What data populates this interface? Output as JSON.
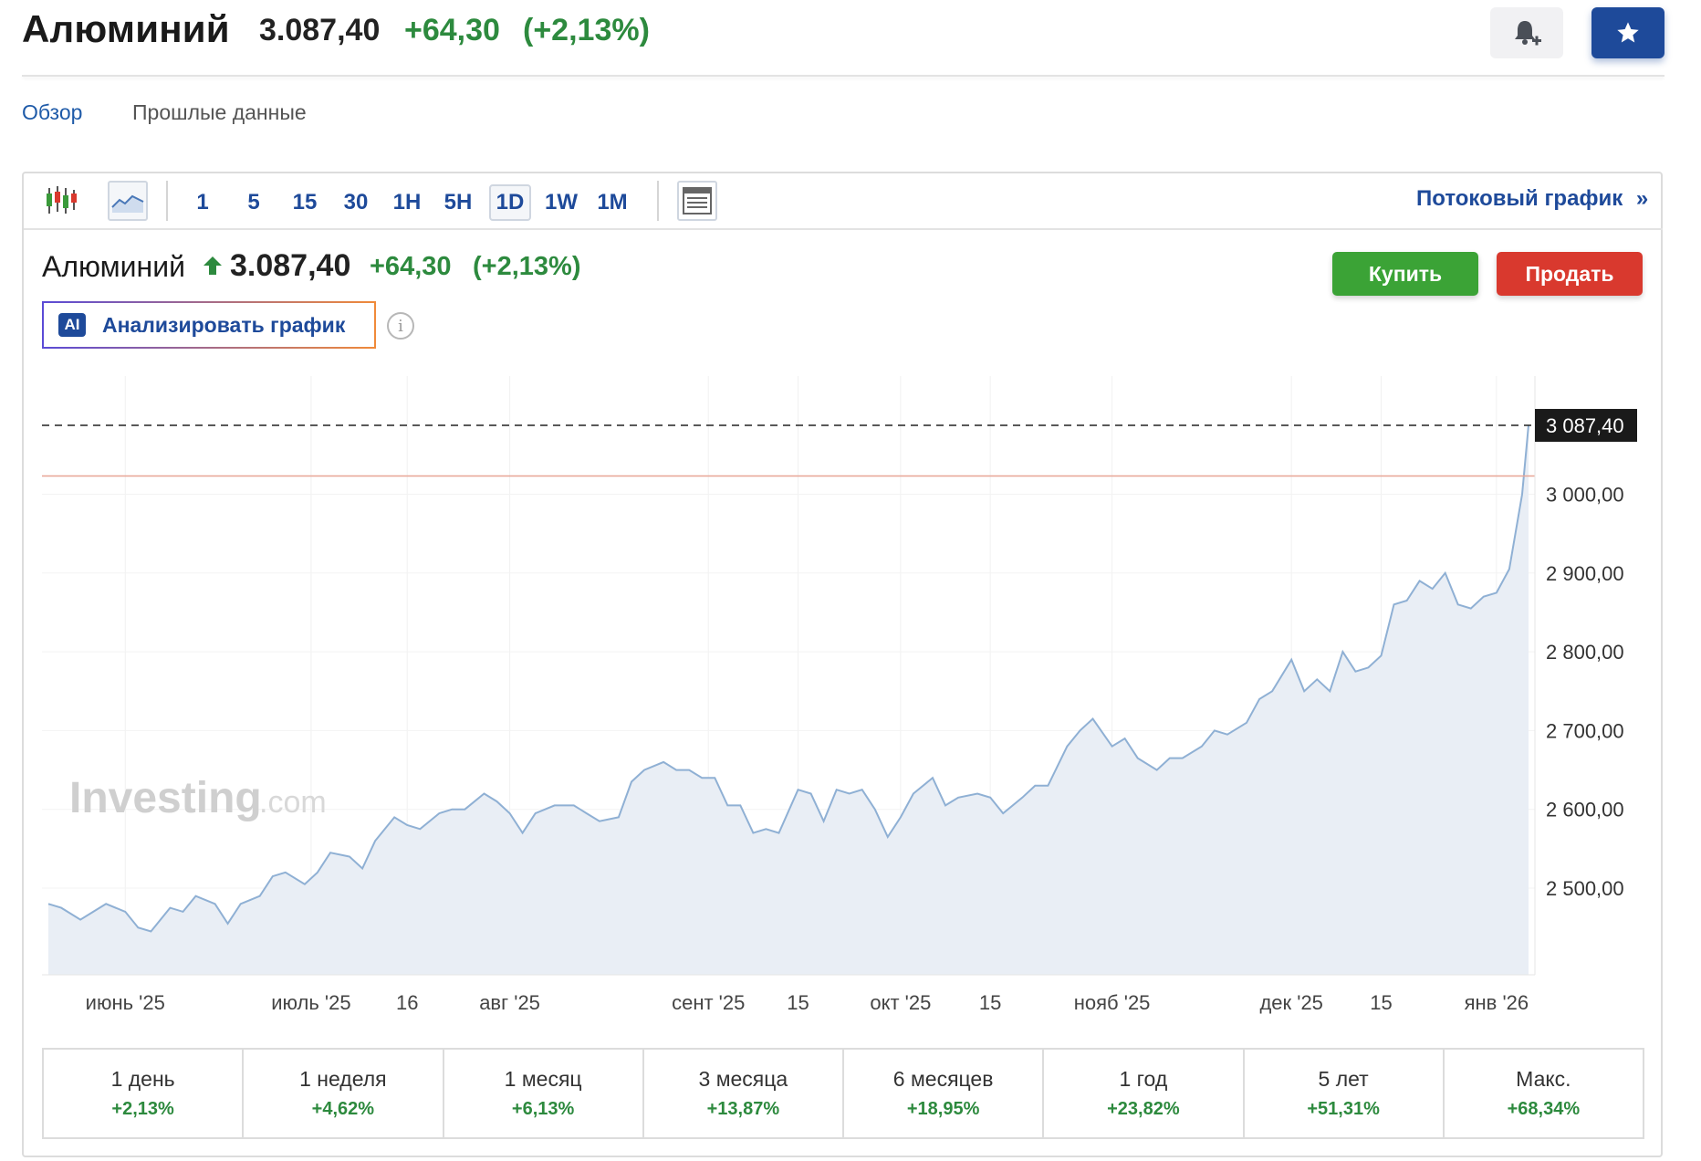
{
  "header": {
    "title": "Алюминий",
    "price": "3.087,40",
    "change": "+64,30",
    "change_pct": "(+2,13%)"
  },
  "tabs": [
    "Обзор",
    "Прошлые данные"
  ],
  "toolbar": {
    "timeframes": [
      "1",
      "5",
      "15",
      "30",
      "1H",
      "5H",
      "1D",
      "1W",
      "1M"
    ],
    "selected_timeframe": "1D",
    "stream_link": "Потоковый график",
    "stream_arrow": "»"
  },
  "quote": {
    "name": "Алюминий",
    "price": "3.087,40",
    "change": "+64,30",
    "change_pct": "(+2,13%)",
    "direction": "up"
  },
  "actions": {
    "buy": "Купить",
    "sell": "Продать",
    "ai_badge": "AI",
    "ai_label": "Анализировать график"
  },
  "watermark": {
    "brand": "Investing",
    "suffix": ".com"
  },
  "colors": {
    "brand_blue": "#1e4a9a",
    "positive": "#2d8a3e",
    "buy": "#3ba336",
    "sell": "#d9392e",
    "line": "#8fb0d4",
    "area": "#e9eef5"
  },
  "chart_data": {
    "type": "area",
    "last_price_label": "3 087,40",
    "last_price": 3087.4,
    "reference_level": 3023.1,
    "ylim": [
      2390,
      3150
    ],
    "y_ticks": [
      {
        "value": 3000,
        "label": "3 000,00"
      },
      {
        "value": 2900,
        "label": "2 900,00"
      },
      {
        "value": 2800,
        "label": "2 800,00"
      },
      {
        "value": 2700,
        "label": "2 700,00"
      },
      {
        "value": 2600,
        "label": "2 600,00"
      },
      {
        "value": 2500,
        "label": "2 500,00"
      }
    ],
    "x_ticks": [
      {
        "label": "июнь '25",
        "date": "2025-06-02"
      },
      {
        "label": "июль '25",
        "date": "2025-07-01"
      },
      {
        "label": "16",
        "date": "2025-07-16"
      },
      {
        "label": "авг '25",
        "date": "2025-08-01"
      },
      {
        "label": "сент '25",
        "date": "2025-09-01"
      },
      {
        "label": "15",
        "date": "2025-09-15"
      },
      {
        "label": "окт '25",
        "date": "2025-10-01"
      },
      {
        "label": "15",
        "date": "2025-10-15"
      },
      {
        "label": "нояб '25",
        "date": "2025-11-03"
      },
      {
        "label": "дек '25",
        "date": "2025-12-01"
      },
      {
        "label": "15",
        "date": "2025-12-15"
      },
      {
        "label": "янв '26",
        "date": "2026-01-02"
      }
    ],
    "series": [
      {
        "points": [
          [
            "2025-05-21",
            2480
          ],
          [
            "2025-05-23",
            2475
          ],
          [
            "2025-05-26",
            2460
          ],
          [
            "2025-05-28",
            2470
          ],
          [
            "2025-05-30",
            2480
          ],
          [
            "2025-06-02",
            2470
          ],
          [
            "2025-06-04",
            2450
          ],
          [
            "2025-06-06",
            2445
          ],
          [
            "2025-06-09",
            2475
          ],
          [
            "2025-06-11",
            2470
          ],
          [
            "2025-06-13",
            2490
          ],
          [
            "2025-06-16",
            2480
          ],
          [
            "2025-06-18",
            2455
          ],
          [
            "2025-06-20",
            2480
          ],
          [
            "2025-06-23",
            2490
          ],
          [
            "2025-06-25",
            2515
          ],
          [
            "2025-06-27",
            2520
          ],
          [
            "2025-06-30",
            2505
          ],
          [
            "2025-07-02",
            2520
          ],
          [
            "2025-07-04",
            2545
          ],
          [
            "2025-07-07",
            2540
          ],
          [
            "2025-07-09",
            2525
          ],
          [
            "2025-07-11",
            2560
          ],
          [
            "2025-07-14",
            2590
          ],
          [
            "2025-07-16",
            2580
          ],
          [
            "2025-07-18",
            2575
          ],
          [
            "2025-07-21",
            2595
          ],
          [
            "2025-07-23",
            2600
          ],
          [
            "2025-07-25",
            2600
          ],
          [
            "2025-07-28",
            2620
          ],
          [
            "2025-07-30",
            2610
          ],
          [
            "2025-08-01",
            2595
          ],
          [
            "2025-08-03",
            2570
          ],
          [
            "2025-08-05",
            2595
          ],
          [
            "2025-08-08",
            2605
          ],
          [
            "2025-08-11",
            2605
          ],
          [
            "2025-08-13",
            2595
          ],
          [
            "2025-08-15",
            2585
          ],
          [
            "2025-08-18",
            2590
          ],
          [
            "2025-08-20",
            2635
          ],
          [
            "2025-08-22",
            2650
          ],
          [
            "2025-08-25",
            2660
          ],
          [
            "2025-08-27",
            2650
          ],
          [
            "2025-08-29",
            2650
          ],
          [
            "2025-08-31",
            2640
          ],
          [
            "2025-09-02",
            2640
          ],
          [
            "2025-09-04",
            2605
          ],
          [
            "2025-09-06",
            2605
          ],
          [
            "2025-09-08",
            2570
          ],
          [
            "2025-09-10",
            2575
          ],
          [
            "2025-09-12",
            2570
          ],
          [
            "2025-09-15",
            2625
          ],
          [
            "2025-09-17",
            2620
          ],
          [
            "2025-09-19",
            2585
          ],
          [
            "2025-09-21",
            2625
          ],
          [
            "2025-09-23",
            2620
          ],
          [
            "2025-09-25",
            2625
          ],
          [
            "2025-09-27",
            2600
          ],
          [
            "2025-09-29",
            2565
          ],
          [
            "2025-10-01",
            2590
          ],
          [
            "2025-10-03",
            2620
          ],
          [
            "2025-10-06",
            2640
          ],
          [
            "2025-10-08",
            2605
          ],
          [
            "2025-10-10",
            2615
          ],
          [
            "2025-10-13",
            2620
          ],
          [
            "2025-10-15",
            2615
          ],
          [
            "2025-10-17",
            2595
          ],
          [
            "2025-10-20",
            2615
          ],
          [
            "2025-10-22",
            2630
          ],
          [
            "2025-10-24",
            2630
          ],
          [
            "2025-10-27",
            2680
          ],
          [
            "2025-10-29",
            2700
          ],
          [
            "2025-10-31",
            2715
          ],
          [
            "2025-11-03",
            2680
          ],
          [
            "2025-11-05",
            2690
          ],
          [
            "2025-11-07",
            2665
          ],
          [
            "2025-11-10",
            2650
          ],
          [
            "2025-11-12",
            2665
          ],
          [
            "2025-11-14",
            2665
          ],
          [
            "2025-11-17",
            2680
          ],
          [
            "2025-11-19",
            2700
          ],
          [
            "2025-11-21",
            2695
          ],
          [
            "2025-11-24",
            2710
          ],
          [
            "2025-11-26",
            2740
          ],
          [
            "2025-11-28",
            2750
          ],
          [
            "2025-12-01",
            2790
          ],
          [
            "2025-12-03",
            2750
          ],
          [
            "2025-12-05",
            2765
          ],
          [
            "2025-12-07",
            2750
          ],
          [
            "2025-12-09",
            2800
          ],
          [
            "2025-12-11",
            2775
          ],
          [
            "2025-12-13",
            2780
          ],
          [
            "2025-12-15",
            2795
          ],
          [
            "2025-12-17",
            2860
          ],
          [
            "2025-12-19",
            2865
          ],
          [
            "2025-12-21",
            2890
          ],
          [
            "2025-12-23",
            2880
          ],
          [
            "2025-12-25",
            2900
          ],
          [
            "2025-12-27",
            2860
          ],
          [
            "2025-12-29",
            2855
          ],
          [
            "2025-12-31",
            2870
          ],
          [
            "2026-01-02",
            2875
          ],
          [
            "2026-01-04",
            2905
          ],
          [
            "2026-01-06",
            3000
          ],
          [
            "2026-01-07",
            3087.4
          ]
        ]
      }
    ]
  },
  "performance": [
    {
      "label": "1 день",
      "value": "+2,13%"
    },
    {
      "label": "1 неделя",
      "value": "+4,62%"
    },
    {
      "label": "1 месяц",
      "value": "+6,13%"
    },
    {
      "label": "3 месяца",
      "value": "+13,87%"
    },
    {
      "label": "6 месяцев",
      "value": "+18,95%"
    },
    {
      "label": "1 год",
      "value": "+23,82%"
    },
    {
      "label": "5 лет",
      "value": "+51,31%"
    },
    {
      "label": "Макс.",
      "value": "+68,34%"
    }
  ]
}
